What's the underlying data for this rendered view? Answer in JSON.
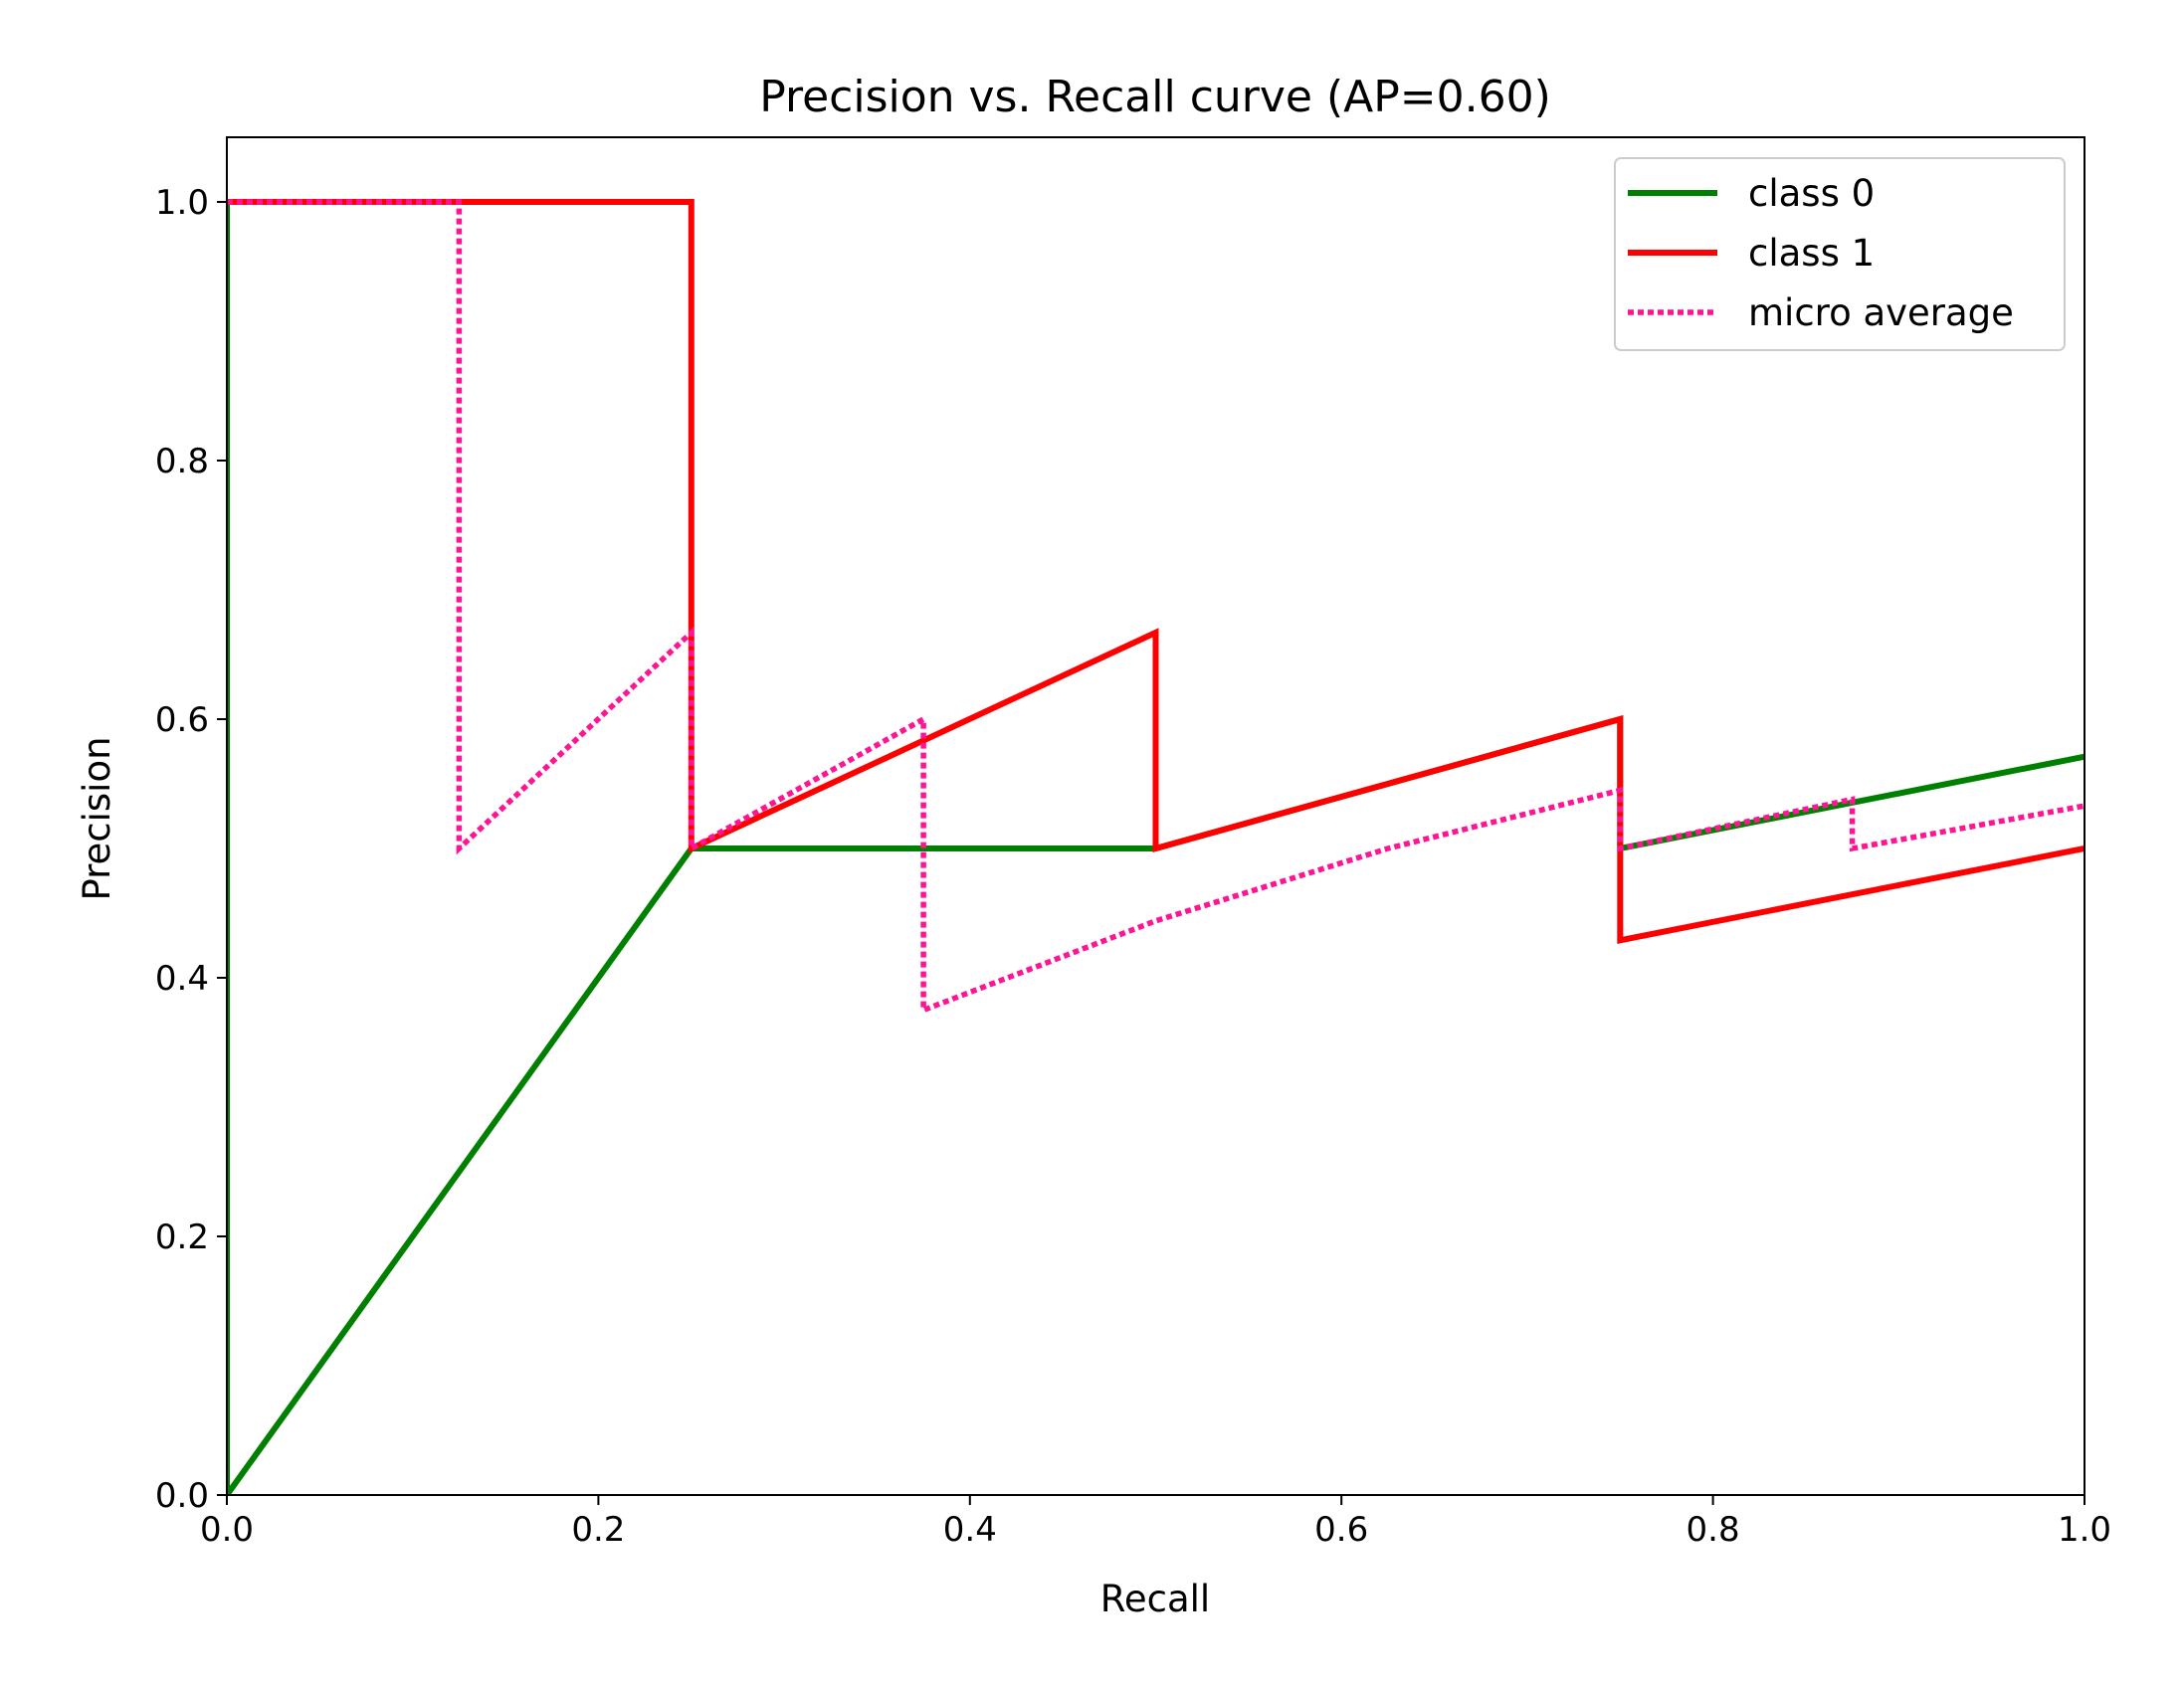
{
  "chart_data": {
    "type": "line",
    "title": "Precision vs. Recall curve (AP=0.60)",
    "xlabel": "Recall",
    "ylabel": "Precision",
    "xlim": [
      0.0,
      1.0
    ],
    "ylim": [
      0.0,
      1.05
    ],
    "xticks": [
      0.0,
      0.2,
      0.4,
      0.6,
      0.8,
      1.0
    ],
    "yticks": [
      0.0,
      0.2,
      0.4,
      0.6,
      0.8,
      1.0
    ],
    "xtick_labels": [
      "0.0",
      "0.2",
      "0.4",
      "0.6",
      "0.8",
      "1.0"
    ],
    "ytick_labels": [
      "0.0",
      "0.2",
      "0.4",
      "0.6",
      "0.8",
      "1.0"
    ],
    "grid": false,
    "legend_position": "top-right",
    "series": [
      {
        "name": "class 0",
        "color": "#008000",
        "style": "solid",
        "points": [
          [
            0.0,
            1.0
          ],
          [
            0.0,
            0.0
          ],
          [
            0.25,
            0.5
          ],
          [
            0.5,
            0.5
          ],
          [
            0.75,
            0.6
          ],
          [
            0.75,
            0.5
          ],
          [
            1.0,
            0.571
          ]
        ]
      },
      {
        "name": "class 1",
        "color": "#ff0000",
        "style": "solid",
        "points": [
          [
            0.0,
            1.0
          ],
          [
            0.25,
            1.0
          ],
          [
            0.25,
            0.5
          ],
          [
            0.5,
            0.667
          ],
          [
            0.5,
            0.5
          ],
          [
            0.75,
            0.6
          ],
          [
            0.75,
            0.429
          ],
          [
            1.0,
            0.5
          ]
        ]
      },
      {
        "name": "micro average",
        "color": "#ff1493",
        "style": "dotted",
        "points": [
          [
            0.0,
            1.0
          ],
          [
            0.125,
            1.0
          ],
          [
            0.125,
            0.5
          ],
          [
            0.25,
            0.667
          ],
          [
            0.25,
            0.5
          ],
          [
            0.375,
            0.6
          ],
          [
            0.375,
            0.375
          ],
          [
            0.5,
            0.444
          ],
          [
            0.625,
            0.5
          ],
          [
            0.75,
            0.545
          ],
          [
            0.75,
            0.5
          ],
          [
            0.875,
            0.538
          ],
          [
            0.875,
            0.5
          ],
          [
            1.0,
            0.533
          ]
        ]
      }
    ]
  }
}
